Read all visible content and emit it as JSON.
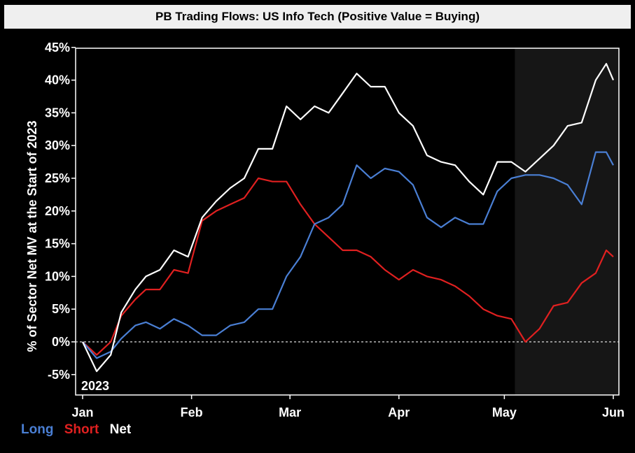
{
  "chart_data": {
    "type": "line",
    "title": "PB Trading Flows: US Info Tech (Positive Value = Buying)",
    "ylabel": "% of Sector Net MV at the Start of 2023",
    "year_label": "2023",
    "ylim": [
      -5,
      45
    ],
    "yticks": [
      "-5%",
      "0%",
      "5%",
      "10%",
      "15%",
      "20%",
      "25%",
      "30%",
      "35%",
      "40%",
      "45%"
    ],
    "ytick_values": [
      -5,
      0,
      5,
      10,
      15,
      20,
      25,
      30,
      35,
      40,
      45
    ],
    "xlim": [
      "2023-01-01",
      "2023-06-01"
    ],
    "xticks": [
      {
        "label": "Jan",
        "date": "2023-01-01"
      },
      {
        "label": "Feb",
        "date": "2023-02-01"
      },
      {
        "label": "Mar",
        "date": "2023-03-01"
      },
      {
        "label": "Apr",
        "date": "2023-04-01"
      },
      {
        "label": "May",
        "date": "2023-05-01"
      },
      {
        "label": "Jun",
        "date": "2023-06-01"
      }
    ],
    "shaded_region": [
      "2023-05-04",
      "2023-06-01"
    ],
    "zero_line": "dashed",
    "colors": {
      "Long": "#4a7fd4",
      "Short": "#e02020",
      "Net": "#ffffff"
    },
    "series": [
      {
        "name": "Long",
        "x": [
          "2023-01-01",
          "2023-01-05",
          "2023-01-09",
          "2023-01-12",
          "2023-01-16",
          "2023-01-19",
          "2023-01-23",
          "2023-01-27",
          "2023-01-31",
          "2023-02-04",
          "2023-02-08",
          "2023-02-12",
          "2023-02-16",
          "2023-02-20",
          "2023-02-24",
          "2023-02-28",
          "2023-03-04",
          "2023-03-08",
          "2023-03-12",
          "2023-03-16",
          "2023-03-20",
          "2023-03-24",
          "2023-03-28",
          "2023-04-01",
          "2023-04-05",
          "2023-04-09",
          "2023-04-13",
          "2023-04-17",
          "2023-04-21",
          "2023-04-25",
          "2023-04-29",
          "2023-05-03",
          "2023-05-07",
          "2023-05-11",
          "2023-05-15",
          "2023-05-19",
          "2023-05-23",
          "2023-05-27",
          "2023-05-30",
          "2023-06-01"
        ],
        "y": [
          0,
          -2.5,
          -1.5,
          0.5,
          2.5,
          3,
          2,
          3.5,
          2.5,
          1,
          1,
          2.5,
          3,
          5,
          5,
          10,
          13,
          18,
          19,
          21,
          27,
          25,
          26.5,
          26,
          24,
          19,
          17.5,
          19,
          18,
          18,
          23,
          25,
          25.5,
          25.5,
          25,
          24,
          21,
          29,
          29,
          27
        ]
      },
      {
        "name": "Short",
        "x": [
          "2023-01-01",
          "2023-01-05",
          "2023-01-09",
          "2023-01-12",
          "2023-01-16",
          "2023-01-19",
          "2023-01-23",
          "2023-01-27",
          "2023-01-31",
          "2023-02-04",
          "2023-02-08",
          "2023-02-12",
          "2023-02-16",
          "2023-02-20",
          "2023-02-24",
          "2023-02-28",
          "2023-03-04",
          "2023-03-08",
          "2023-03-12",
          "2023-03-16",
          "2023-03-20",
          "2023-03-24",
          "2023-03-28",
          "2023-04-01",
          "2023-04-05",
          "2023-04-09",
          "2023-04-13",
          "2023-04-17",
          "2023-04-21",
          "2023-04-25",
          "2023-04-29",
          "2023-05-03",
          "2023-05-07",
          "2023-05-11",
          "2023-05-15",
          "2023-05-19",
          "2023-05-23",
          "2023-05-27",
          "2023-05-30",
          "2023-06-01"
        ],
        "y": [
          0,
          -2,
          0,
          4,
          6.5,
          8,
          8,
          11,
          10.5,
          18.5,
          20,
          21,
          22,
          25,
          24.5,
          24.5,
          21,
          18,
          16,
          14,
          14,
          13,
          11,
          9.5,
          11,
          10,
          9.5,
          8.5,
          7,
          5,
          4,
          3.5,
          0,
          2,
          5.5,
          6,
          9,
          10.5,
          14,
          13
        ]
      },
      {
        "name": "Net",
        "x": [
          "2023-01-01",
          "2023-01-05",
          "2023-01-09",
          "2023-01-12",
          "2023-01-16",
          "2023-01-19",
          "2023-01-23",
          "2023-01-27",
          "2023-01-31",
          "2023-02-04",
          "2023-02-08",
          "2023-02-12",
          "2023-02-16",
          "2023-02-20",
          "2023-02-24",
          "2023-02-28",
          "2023-03-04",
          "2023-03-08",
          "2023-03-12",
          "2023-03-16",
          "2023-03-20",
          "2023-03-24",
          "2023-03-28",
          "2023-04-01",
          "2023-04-05",
          "2023-04-09",
          "2023-04-13",
          "2023-04-17",
          "2023-04-21",
          "2023-04-25",
          "2023-04-29",
          "2023-05-03",
          "2023-05-07",
          "2023-05-11",
          "2023-05-15",
          "2023-05-19",
          "2023-05-23",
          "2023-05-27",
          "2023-05-30",
          "2023-06-01"
        ],
        "y": [
          0,
          -4.5,
          -2,
          4.5,
          8,
          10,
          11,
          14,
          13,
          19,
          21.5,
          23.5,
          25,
          29.5,
          29.5,
          36,
          34,
          36,
          35,
          38,
          41,
          39,
          39,
          35,
          33,
          28.5,
          27.5,
          27,
          24.5,
          22.5,
          27.5,
          27.5,
          26,
          28,
          30,
          33,
          33.5,
          40,
          42.5,
          40
        ]
      }
    ]
  }
}
